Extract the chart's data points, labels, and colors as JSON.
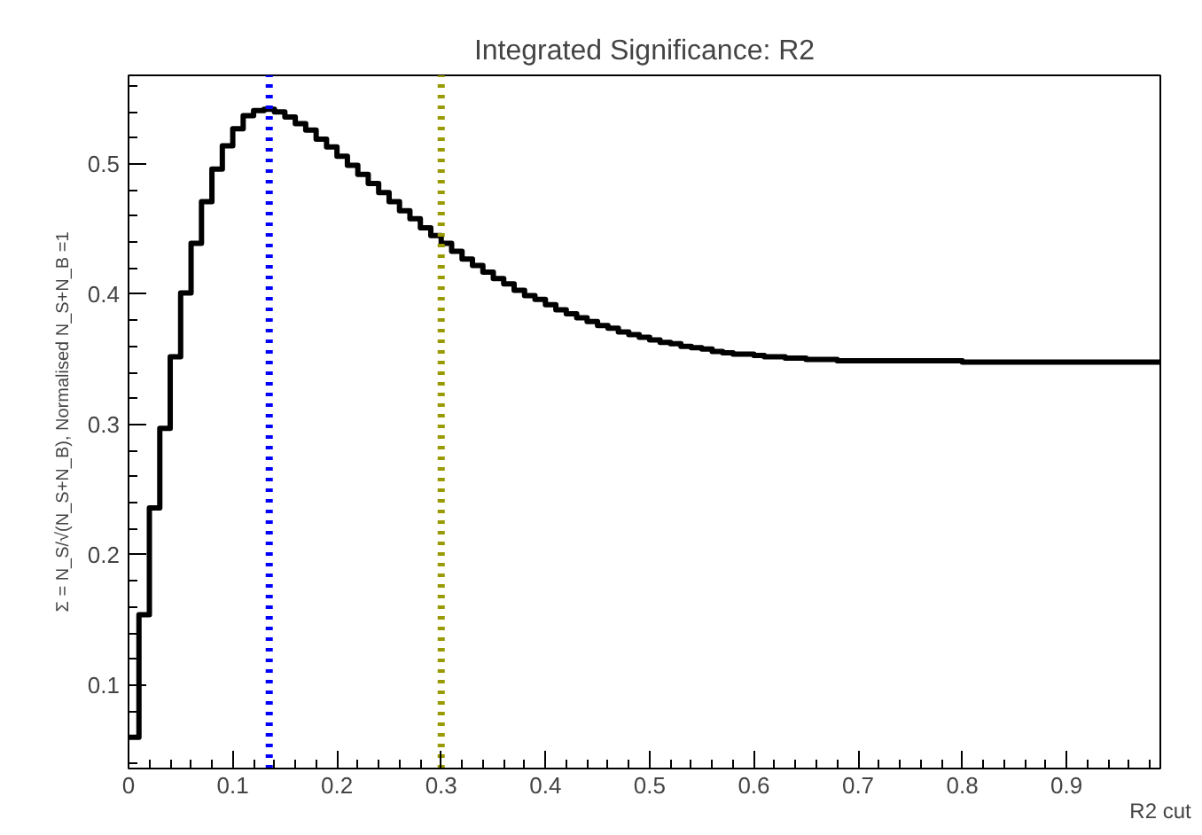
{
  "chart_data": {
    "type": "histogram",
    "title": "Integrated Significance: R2",
    "xlabel": "R2 cut",
    "ylabel": "Σ = N_S/√(N_S+N_B), Normalised N_S+N_B =1",
    "bins": [
      0,
      0.01,
      0.02,
      0.03,
      0.04,
      0.05,
      0.06,
      0.07,
      0.08,
      0.09,
      0.1,
      0.11,
      0.12,
      0.13,
      0.14,
      0.15,
      0.16,
      0.17,
      0.18,
      0.19,
      0.2,
      0.21,
      0.22,
      0.23,
      0.24,
      0.25,
      0.26,
      0.27,
      0.28,
      0.29,
      0.3,
      0.31,
      0.32,
      0.33,
      0.34,
      0.35,
      0.36,
      0.37,
      0.38,
      0.39,
      0.4,
      0.41,
      0.42,
      0.43,
      0.44,
      0.45,
      0.46,
      0.47,
      0.48,
      0.49,
      0.5,
      0.51,
      0.52,
      0.53,
      0.54,
      0.55,
      0.56,
      0.57,
      0.58,
      0.59,
      0.6,
      0.61,
      0.62,
      0.63,
      0.64,
      0.65,
      0.66,
      0.67,
      0.68,
      0.69,
      0.7,
      0.71,
      0.72,
      0.73,
      0.74,
      0.75,
      0.76,
      0.77,
      0.78,
      0.79,
      0.8,
      0.81,
      0.82,
      0.83,
      0.84,
      0.85,
      0.86,
      0.87,
      0.88,
      0.89,
      0.9,
      0.91,
      0.92,
      0.93,
      0.94,
      0.95,
      0.96,
      0.97,
      0.98,
      0.99
    ],
    "values": [
      0.06,
      0.154,
      0.236,
      0.297,
      0.352,
      0.401,
      0.439,
      0.471,
      0.496,
      0.514,
      0.527,
      0.537,
      0.541,
      0.542,
      0.54,
      0.536,
      0.531,
      0.526,
      0.519,
      0.513,
      0.506,
      0.499,
      0.492,
      0.485,
      0.478,
      0.471,
      0.464,
      0.458,
      0.451,
      0.445,
      0.439,
      0.433,
      0.427,
      0.422,
      0.417,
      0.412,
      0.408,
      0.403,
      0.399,
      0.396,
      0.392,
      0.388,
      0.385,
      0.382,
      0.379,
      0.376,
      0.374,
      0.371,
      0.369,
      0.367,
      0.365,
      0.363,
      0.362,
      0.36,
      0.359,
      0.358,
      0.356,
      0.355,
      0.354,
      0.354,
      0.353,
      0.352,
      0.352,
      0.351,
      0.351,
      0.35,
      0.35,
      0.35,
      0.349,
      0.349,
      0.349,
      0.349,
      0.349,
      0.349,
      0.349,
      0.349,
      0.349,
      0.349,
      0.349,
      0.349,
      0.348,
      0.348,
      0.348,
      0.348,
      0.348,
      0.348,
      0.348,
      0.348,
      0.348,
      0.348,
      0.348,
      0.348,
      0.348,
      0.348,
      0.348,
      0.348,
      0.348,
      0.348,
      0.348
    ],
    "color": "#000000",
    "xlim": [
      0,
      0.99
    ],
    "ylim": [
      0.036,
      0.568
    ],
    "xticks": [
      0,
      0.1,
      0.2,
      0.3,
      0.4,
      0.5,
      0.6,
      0.7,
      0.8,
      0.9
    ],
    "yticks": [
      0.1,
      0.2,
      0.3,
      0.4,
      0.5
    ],
    "ref_lines": [
      {
        "axis": "x",
        "value": 0.135,
        "color": "#0000ff",
        "line_style": "dotted"
      },
      {
        "axis": "x",
        "value": 0.3,
        "color": "#999900",
        "line_style": "dotted"
      }
    ],
    "grid": false
  }
}
